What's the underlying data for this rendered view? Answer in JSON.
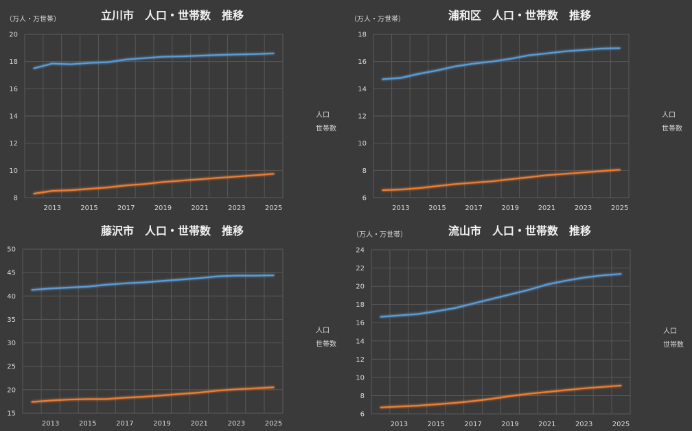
{
  "chart_data": [
    {
      "type": "line",
      "title": "立川市　人口・世帯数　推移",
      "unit_label": "（万人・万世帯）",
      "x": [
        2012,
        2013,
        2014,
        2015,
        2016,
        2017,
        2018,
        2019,
        2020,
        2021,
        2022,
        2023,
        2024,
        2025
      ],
      "x_tick_labels": [
        "2013",
        "2015",
        "2017",
        "2019",
        "2021",
        "2023",
        "2025"
      ],
      "ylim": [
        8,
        20
      ],
      "y_ticks": [
        8,
        10,
        12,
        14,
        16,
        18,
        20
      ],
      "grid": true,
      "legend": "right",
      "series": [
        {
          "name": "人口",
          "color": "#5b9bd5",
          "values": [
            17.5,
            17.85,
            17.8,
            17.9,
            17.95,
            18.15,
            18.25,
            18.35,
            18.38,
            18.43,
            18.48,
            18.52,
            18.55,
            18.6
          ]
        },
        {
          "name": "世帯数",
          "color": "#ed7d31",
          "values": [
            8.3,
            8.5,
            8.55,
            8.65,
            8.75,
            8.9,
            9.0,
            9.15,
            9.25,
            9.35,
            9.45,
            9.55,
            9.65,
            9.75
          ]
        }
      ]
    },
    {
      "type": "line",
      "title": "浦和区　人口・世帯数　推移",
      "unit_label": "（万人・万世帯）",
      "x": [
        2012,
        2013,
        2014,
        2015,
        2016,
        2017,
        2018,
        2019,
        2020,
        2021,
        2022,
        2023,
        2024,
        2025
      ],
      "x_tick_labels": [
        "2013",
        "2015",
        "2017",
        "2019",
        "2021",
        "2023",
        "2025"
      ],
      "ylim": [
        6,
        18
      ],
      "y_ticks": [
        6,
        8,
        10,
        12,
        14,
        16,
        18
      ],
      "grid": true,
      "legend": "right",
      "series": [
        {
          "name": "人口",
          "color": "#5b9bd5",
          "values": [
            14.7,
            14.8,
            15.1,
            15.35,
            15.65,
            15.85,
            16.0,
            16.2,
            16.45,
            16.6,
            16.75,
            16.85,
            16.95,
            16.98
          ]
        },
        {
          "name": "世帯数",
          "color": "#ed7d31",
          "values": [
            6.55,
            6.6,
            6.7,
            6.85,
            7.0,
            7.1,
            7.2,
            7.35,
            7.5,
            7.65,
            7.75,
            7.85,
            7.95,
            8.05
          ]
        }
      ]
    },
    {
      "type": "line",
      "title": "藤沢市　人口・世帯数　推移",
      "unit_label": "",
      "x": [
        2012,
        2013,
        2014,
        2015,
        2016,
        2017,
        2018,
        2019,
        2020,
        2021,
        2022,
        2023,
        2024,
        2025
      ],
      "x_tick_labels": [
        "2013",
        "2015",
        "2017",
        "2019",
        "2021",
        "2023",
        "2025"
      ],
      "ylim": [
        15,
        50
      ],
      "y_ticks": [
        15,
        20,
        25,
        30,
        35,
        40,
        45,
        50
      ],
      "grid": true,
      "legend": "right",
      "series": [
        {
          "name": "人口",
          "color": "#5b9bd5",
          "values": [
            41.3,
            41.6,
            41.8,
            42.0,
            42.4,
            42.7,
            42.9,
            43.2,
            43.5,
            43.8,
            44.2,
            44.35,
            44.35,
            44.4
          ]
        },
        {
          "name": "世帯数",
          "color": "#ed7d31",
          "values": [
            17.4,
            17.7,
            17.9,
            18.0,
            18.0,
            18.3,
            18.5,
            18.8,
            19.1,
            19.4,
            19.8,
            20.1,
            20.3,
            20.5
          ]
        }
      ]
    },
    {
      "type": "line",
      "title": "流山市　人口・世帯数　推移",
      "unit_label": "（万人・万世帯）",
      "x": [
        2012,
        2013,
        2014,
        2015,
        2016,
        2017,
        2018,
        2019,
        2020,
        2021,
        2022,
        2023,
        2024,
        2025
      ],
      "x_tick_labels": [
        "2013",
        "2015",
        "2017",
        "2019",
        "2021",
        "2023",
        "2025"
      ],
      "ylim": [
        6,
        24
      ],
      "y_ticks": [
        6,
        8,
        10,
        12,
        14,
        16,
        18,
        20,
        22,
        24
      ],
      "grid": true,
      "legend": "right",
      "series": [
        {
          "name": "人口",
          "color": "#5b9bd5",
          "values": [
            16.65,
            16.8,
            16.95,
            17.25,
            17.6,
            18.1,
            18.6,
            19.1,
            19.6,
            20.2,
            20.6,
            20.95,
            21.2,
            21.35
          ]
        },
        {
          "name": "世帯数",
          "color": "#ed7d31",
          "values": [
            6.7,
            6.8,
            6.9,
            7.05,
            7.2,
            7.4,
            7.65,
            7.95,
            8.2,
            8.4,
            8.6,
            8.8,
            8.95,
            9.1
          ]
        }
      ]
    }
  ]
}
